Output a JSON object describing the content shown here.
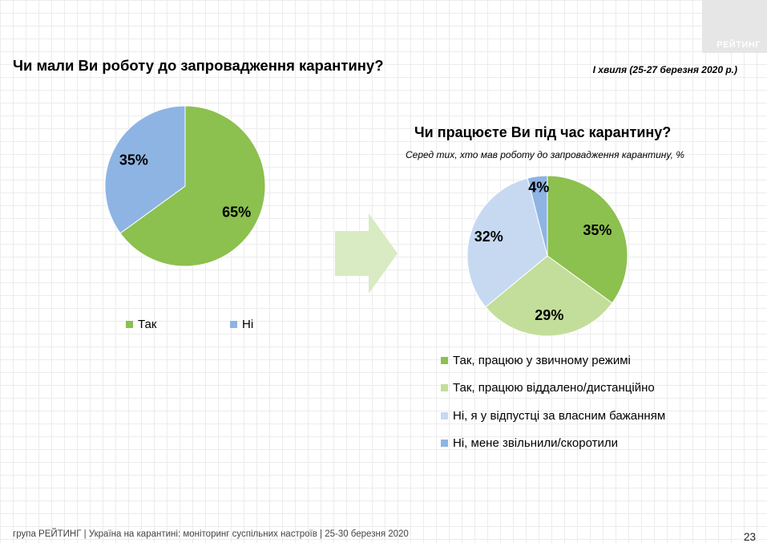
{
  "logo": {
    "text": "РЕЙТИНГ"
  },
  "header": {
    "title": "Чи мали Ви роботу до запровадження карантину?",
    "wave": "І хвиля (25-27 березня 2020 р.)"
  },
  "chart_data": [
    {
      "type": "pie",
      "title": "Чи мали Ви роботу до запровадження карантину?",
      "categories": [
        "Так",
        "Ні"
      ],
      "values": [
        65,
        35
      ],
      "value_labels": [
        "65%",
        "35%"
      ],
      "colors": [
        "#8cc04f",
        "#8eb4e3"
      ],
      "legend": "bottom"
    },
    {
      "type": "pie",
      "title": "Чи працюєте Ви під час карантину?",
      "subtitle": "Серед тих, хто мав роботу до запровадження карантину, %",
      "categories": [
        "Так, працюю у звичному режимі",
        "Так, працюю віддалено/дистанційно",
        "Ні, я у відпустці за власним бажанням",
        "Ні, мене звільнили/скоротили"
      ],
      "values": [
        35,
        29,
        32,
        4
      ],
      "value_labels": [
        "35%",
        "29%",
        "32%",
        "4%"
      ],
      "colors": [
        "#8cc04f",
        "#c3de9a",
        "#c6d9f1",
        "#8eb4e3"
      ],
      "legend": "bottom"
    }
  ],
  "footer": {
    "text": "група РЕЙТИНГ  |  Україна на карантині: моніторинг суспільних настроїв  |  25-30 березня 2020",
    "page": "23"
  }
}
